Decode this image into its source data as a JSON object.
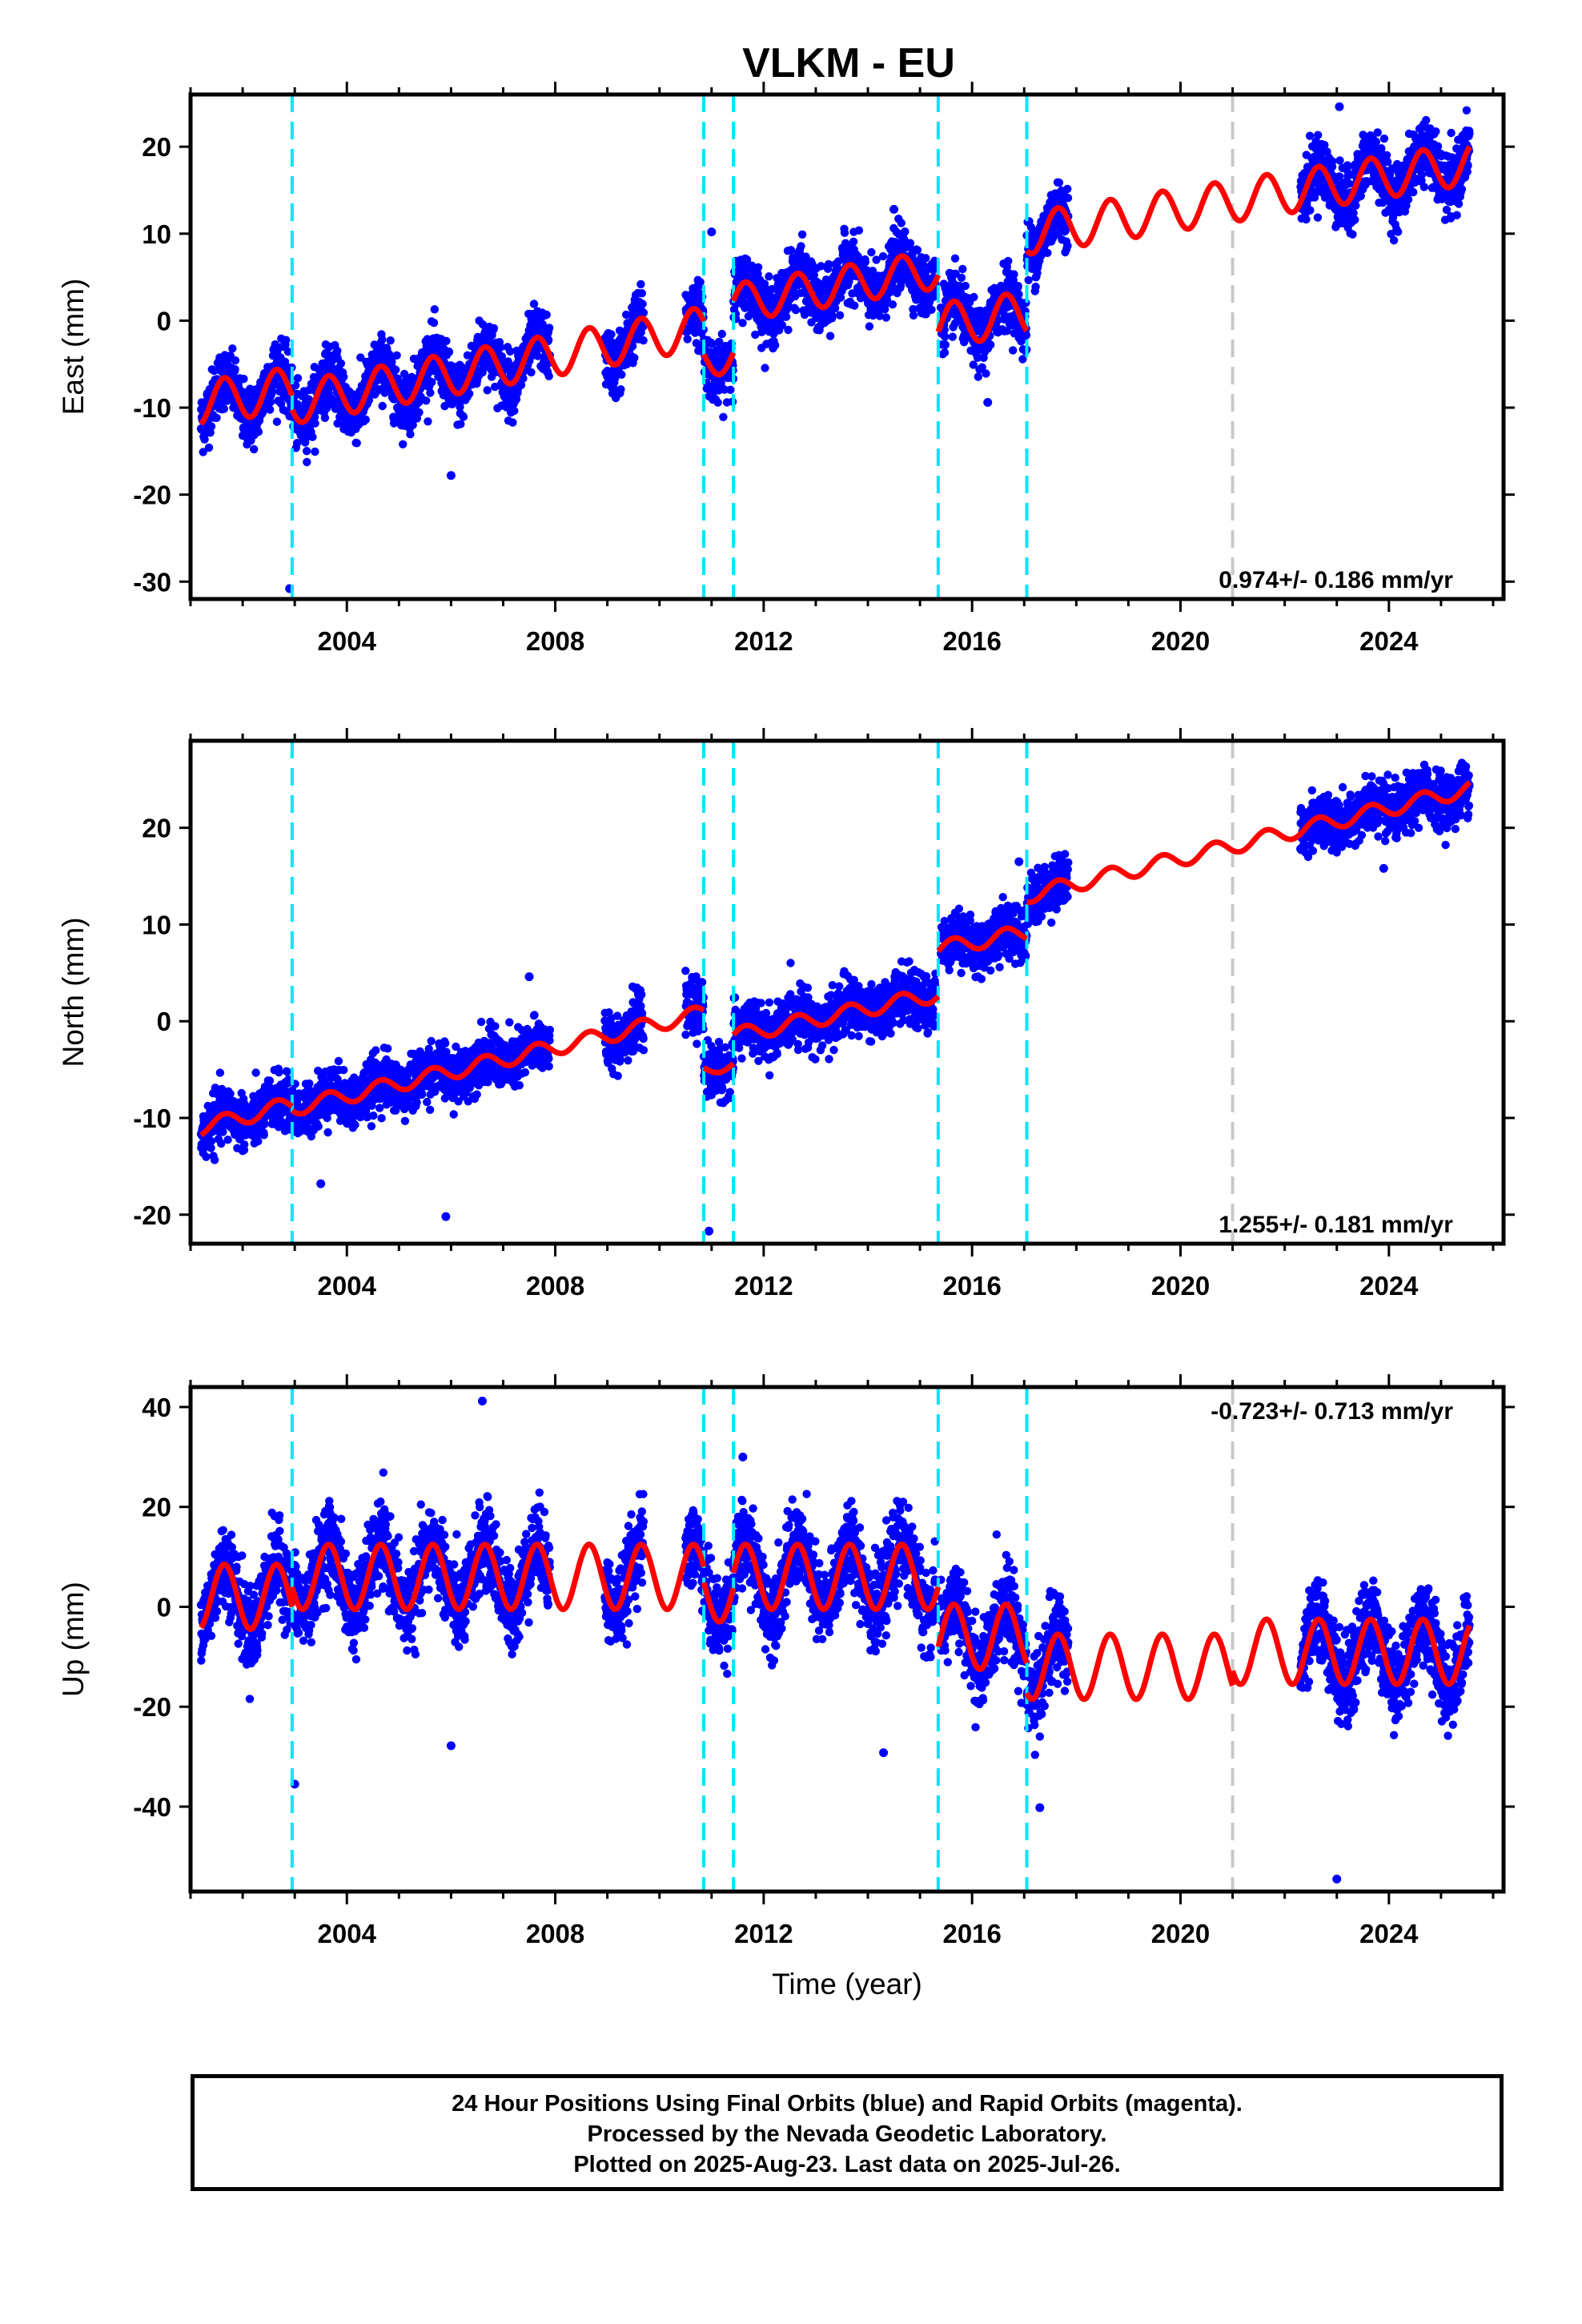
{
  "title": "VLKM - EU",
  "colors": {
    "final_orbit_points": "#0000ff",
    "model_fit": "#ff0000",
    "equipment_change": "#00e5ff",
    "other_break": "#c8c8c8",
    "frame": "#000000"
  },
  "chart_data": [
    {
      "type": "scatter",
      "panel": "east",
      "ylabel": "East (mm)",
      "xlabel": "",
      "xlim": [
        2001.0,
        2026.2
      ],
      "ylim": [
        -32,
        26
      ],
      "yticks": [
        -30,
        -20,
        -10,
        0,
        10,
        20
      ],
      "xticks": [
        2004,
        2008,
        2012,
        2016,
        2020,
        2024
      ],
      "rate_label": "0.974+/- 0.186 mm/yr",
      "rate_position": "bottom-right",
      "grid": false,
      "breaks_cyan": [
        2002.95,
        2010.85,
        2011.42,
        2015.35,
        2017.05
      ],
      "breaks_gray": [
        2021.0
      ],
      "data_segments": [
        {
          "start": 2001.2,
          "end": 2007.9
        },
        {
          "start": 2008.95,
          "end": 2009.7
        },
        {
          "start": 2010.5,
          "end": 2015.3
        },
        {
          "start": 2015.4,
          "end": 2017.05
        },
        {
          "start": 2017.05,
          "end": 2017.85
        },
        {
          "start": 2022.3,
          "end": 2025.55
        }
      ],
      "model_segments": [
        {
          "start": 2001.2,
          "end": 2002.95,
          "base": -9.5,
          "rate": 0.95,
          "amp": 2.5
        },
        {
          "start": 2002.95,
          "end": 2010.85,
          "base": -9.5,
          "rate": 1.1,
          "amp": 2.4
        },
        {
          "start": 2010.85,
          "end": 2011.42,
          "base": -4.5,
          "rate": 1.0,
          "amp": 2.0
        },
        {
          "start": 2011.42,
          "end": 2015.35,
          "base": 2.0,
          "rate": 1.0,
          "amp": 2.2
        },
        {
          "start": 2015.35,
          "end": 2017.05,
          "base": -0.5,
          "rate": 0.8,
          "amp": 2.5
        },
        {
          "start": 2017.05,
          "end": 2025.55,
          "base": 10.0,
          "rate": 0.95,
          "amp": 2.4
        }
      ],
      "scatter_noise": 2.3,
      "outliers": [
        [
          2002.9,
          -30.8
        ],
        [
          2006.0,
          -17.8
        ],
        [
          2011.0,
          10.2
        ],
        [
          2016.3,
          -9.4
        ],
        [
          2023.05,
          24.6
        ],
        [
          2014.5,
          12.8
        ]
      ]
    },
    {
      "type": "scatter",
      "panel": "north",
      "ylabel": "North (mm)",
      "xlabel": "",
      "xlim": [
        2001.0,
        2026.2
      ],
      "ylim": [
        -23,
        29
      ],
      "yticks": [
        -20,
        -10,
        0,
        10,
        20
      ],
      "xticks": [
        2004,
        2008,
        2012,
        2016,
        2020,
        2024
      ],
      "rate_label": "1.255+/- 0.181 mm/yr",
      "rate_position": "bottom-right",
      "grid": false,
      "breaks_cyan": [
        2002.95,
        2010.85,
        2011.42,
        2015.35,
        2017.05
      ],
      "breaks_gray": [
        2021.0
      ],
      "data_segments": [
        {
          "start": 2001.2,
          "end": 2007.9
        },
        {
          "start": 2008.95,
          "end": 2009.7
        },
        {
          "start": 2010.5,
          "end": 2015.3
        },
        {
          "start": 2015.4,
          "end": 2017.05
        },
        {
          "start": 2017.05,
          "end": 2017.85
        },
        {
          "start": 2022.3,
          "end": 2025.55
        }
      ],
      "model_segments": [
        {
          "start": 2001.2,
          "end": 2002.95,
          "base": -11.0,
          "rate": 1.4,
          "amp": 0.8
        },
        {
          "start": 2002.95,
          "end": 2010.85,
          "base": -9.0,
          "rate": 1.25,
          "amp": 0.8
        },
        {
          "start": 2010.85,
          "end": 2011.42,
          "base": -5.0,
          "rate": 1.0,
          "amp": 0.6
        },
        {
          "start": 2011.42,
          "end": 2015.35,
          "base": -1.5,
          "rate": 1.1,
          "amp": 0.8
        },
        {
          "start": 2015.35,
          "end": 2017.05,
          "base": 7.5,
          "rate": 1.0,
          "amp": 0.8
        },
        {
          "start": 2017.05,
          "end": 2025.55,
          "base": 13.0,
          "rate": 1.3,
          "amp": 0.8
        }
      ],
      "scatter_noise": 1.8,
      "outliers": [
        [
          2005.9,
          -20.2
        ],
        [
          2010.95,
          -21.7
        ],
        [
          2003.5,
          -16.8
        ],
        [
          2023.9,
          15.8
        ],
        [
          2007.5,
          4.6
        ],
        [
          2016.9,
          16.5
        ]
      ]
    },
    {
      "type": "scatter",
      "panel": "up",
      "ylabel": "Up (mm)",
      "xlabel": "Time (year)",
      "xlim": [
        2001.0,
        2026.2
      ],
      "ylim": [
        -57,
        44
      ],
      "yticks": [
        -40,
        -20,
        0,
        20,
        40
      ],
      "xticks": [
        2004,
        2008,
        2012,
        2016,
        2020,
        2024
      ],
      "rate_label": "-0.723+/- 0.713 mm/yr",
      "rate_position": "top-right",
      "grid": false,
      "breaks_cyan": [
        2002.95,
        2010.85,
        2011.42,
        2015.35,
        2017.05
      ],
      "breaks_gray": [
        2021.0
      ],
      "data_segments": [
        {
          "start": 2001.2,
          "end": 2007.9
        },
        {
          "start": 2008.95,
          "end": 2009.7
        },
        {
          "start": 2010.5,
          "end": 2015.3
        },
        {
          "start": 2015.4,
          "end": 2017.05
        },
        {
          "start": 2017.05,
          "end": 2017.85
        },
        {
          "start": 2022.3,
          "end": 2025.55
        }
      ],
      "model_segments": [
        {
          "start": 2001.2,
          "end": 2002.95,
          "base": 2.0,
          "rate": 0.0,
          "amp": 6.5
        },
        {
          "start": 2002.95,
          "end": 2010.85,
          "base": 6.0,
          "rate": 0.0,
          "amp": 6.5
        },
        {
          "start": 2010.85,
          "end": 2011.42,
          "base": 3.0,
          "rate": 0.0,
          "amp": 6.0
        },
        {
          "start": 2011.42,
          "end": 2015.35,
          "base": 6.0,
          "rate": 0.0,
          "amp": 6.5
        },
        {
          "start": 2015.35,
          "end": 2017.05,
          "base": -6.0,
          "rate": 0.0,
          "amp": 6.5
        },
        {
          "start": 2017.05,
          "end": 2021.0,
          "base": -12.0,
          "rate": 0.0,
          "amp": 6.5
        },
        {
          "start": 2021.0,
          "end": 2025.55,
          "base": -9.0,
          "rate": 0.0,
          "amp": 6.5
        }
      ],
      "scatter_noise": 5.5,
      "outliers": [
        [
          2003.0,
          -35.5
        ],
        [
          2006.0,
          -27.8
        ],
        [
          2023.0,
          -54.5
        ],
        [
          2017.3,
          -40.2
        ],
        [
          2006.6,
          41.2
        ],
        [
          2011.6,
          30.0
        ],
        [
          2014.3,
          -29.2
        ]
      ]
    }
  ],
  "footer": {
    "line1": "24 Hour Positions Using Final Orbits (blue) and Rapid Orbits (magenta).",
    "line2": "Processed by the Nevada Geodetic Laboratory.",
    "line3": "Plotted on 2025-Aug-23. Last data on 2025-Jul-26."
  }
}
